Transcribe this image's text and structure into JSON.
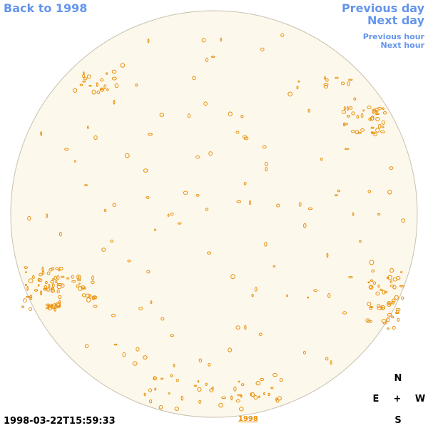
{
  "nav": {
    "back": "Back to 1998",
    "previous_day": "Previous day",
    "next_day": "Next day",
    "previous_hour": "Previous hour",
    "next_hour": "Next hour"
  },
  "timestamp": "1998-03-22T15:59:33",
  "year_link": "1998",
  "compass": {
    "north": "N",
    "east": "E",
    "center": "+",
    "west": "W",
    "south": "S"
  }
}
